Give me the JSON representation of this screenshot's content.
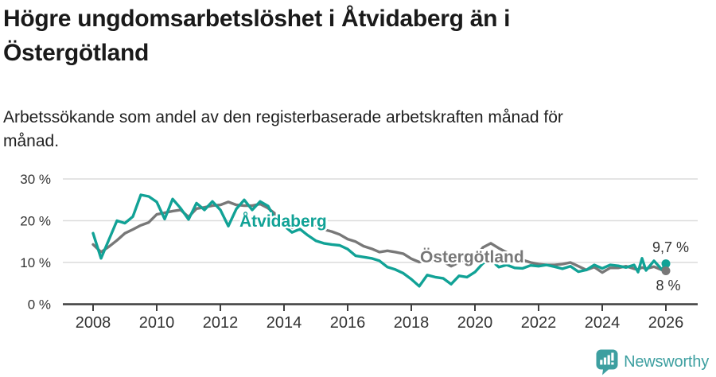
{
  "header": {
    "title_lines": [
      "Högre ungdomsarbetslöshet i Åtvidaberg än i",
      "Östergötland"
    ],
    "subtitle_lines": [
      "Arbetssökande som andel av den registerbaserade arbetskraften månad för",
      "månad."
    ]
  },
  "footer": {
    "brand": "Newsworthy"
  },
  "colors": {
    "atvidaberg": "#11a296",
    "ostergotland": "#787878",
    "grid": "#dcdcdc",
    "axis": "#3f3f3f",
    "tick_text": "#333333",
    "logo_teal": "#3d9fa0"
  },
  "chart_data": {
    "type": "line",
    "title": "Högre ungdomsarbetslöshet i Åtvidaberg än i Östergötland",
    "subtitle": "Arbetssökande som andel av den registerbaserade arbetskraften månad för månad.",
    "unit": "%",
    "grid": true,
    "legend_position": "inline-labels",
    "xlim": [
      2007.05,
      2027.0
    ],
    "ylim": [
      0,
      32
    ],
    "xticks": [
      2008,
      2010,
      2012,
      2014,
      2016,
      2018,
      2020,
      2022,
      2024,
      2026
    ],
    "yticks": [
      {
        "value": 0,
        "label": "0 %"
      },
      {
        "value": 10,
        "label": "10 %"
      },
      {
        "value": 20,
        "label": "20 %"
      },
      {
        "value": 30,
        "label": "30 %"
      }
    ],
    "x": [
      2008,
      2008.25,
      2008.5,
      2008.75,
      2009,
      2009.25,
      2009.5,
      2009.75,
      2010,
      2010.25,
      2010.5,
      2010.75,
      2011,
      2011.25,
      2011.5,
      2011.75,
      2012,
      2012.25,
      2012.5,
      2012.75,
      2013,
      2013.25,
      2013.5,
      2013.75,
      2014,
      2014.25,
      2014.5,
      2014.75,
      2015,
      2015.25,
      2015.5,
      2015.75,
      2016,
      2016.25,
      2016.5,
      2016.75,
      2017,
      2017.25,
      2017.5,
      2017.75,
      2018,
      2018.25,
      2018.5,
      2018.75,
      2019,
      2019.25,
      2019.5,
      2019.75,
      2020,
      2020.25,
      2020.5,
      2020.75,
      2021,
      2021.25,
      2021.5,
      2021.75,
      2022,
      2022.25,
      2022.5,
      2022.75,
      2023,
      2023.25,
      2023.5,
      2023.75,
      2024,
      2024.25,
      2024.5,
      2024.75,
      2025,
      2025.125,
      2025.25,
      2025.375,
      2025.625,
      2025.875,
      2026
    ],
    "series": [
      {
        "name": "Åtvidaberg",
        "color": "#11a296",
        "end_label": "9,7 %",
        "end_value": 9.7,
        "values": [
          17.0,
          11.0,
          15.5,
          20.0,
          19.4,
          21.0,
          26.2,
          25.8,
          24.5,
          20.4,
          25.2,
          23.0,
          20.3,
          24.2,
          22.6,
          24.6,
          22.6,
          18.7,
          22.8,
          25.0,
          22.6,
          24.6,
          23.5,
          20.0,
          18.8,
          17.2,
          18.0,
          16.5,
          15.2,
          14.6,
          14.3,
          14.1,
          13.2,
          11.6,
          11.3,
          11.0,
          10.4,
          8.9,
          8.3,
          7.4,
          6.0,
          4.3,
          7.0,
          6.5,
          6.2,
          4.8,
          6.8,
          6.5,
          7.7,
          9.8,
          10.6,
          8.9,
          9.4,
          8.7,
          8.6,
          9.3,
          9.1,
          9.4,
          9.0,
          8.5,
          9.1,
          7.8,
          8.2,
          9.4,
          8.6,
          9.4,
          9.2,
          8.8,
          9.4,
          7.7,
          11.0,
          8.1,
          10.4,
          8.3,
          9.7
        ]
      },
      {
        "name": "Östergötland",
        "color": "#787878",
        "end_label": "8 %",
        "end_value": 8.0,
        "values": [
          14.3,
          12.5,
          13.8,
          15.3,
          17.0,
          17.9,
          18.9,
          19.6,
          21.5,
          21.9,
          22.3,
          22.6,
          20.9,
          22.9,
          23.2,
          23.6,
          23.8,
          24.5,
          23.8,
          23.6,
          23.6,
          24.0,
          23.0,
          21.5,
          20.0,
          18.3,
          19.0,
          18.9,
          18.7,
          17.9,
          17.4,
          16.7,
          15.6,
          15.0,
          13.9,
          13.3,
          12.5,
          12.8,
          12.5,
          12.1,
          10.9,
          10.1,
          10.4,
          10.4,
          10.2,
          9.1,
          10.0,
          10.4,
          11.0,
          13.6,
          14.6,
          13.4,
          12.4,
          11.4,
          10.6,
          10.0,
          9.6,
          9.4,
          9.4,
          9.6,
          10.0,
          9.1,
          8.2,
          8.9,
          7.6,
          8.7,
          8.7,
          9.1,
          8.5,
          8.3,
          8.8,
          8.5,
          9.0,
          8.2,
          8.0
        ]
      }
    ]
  }
}
